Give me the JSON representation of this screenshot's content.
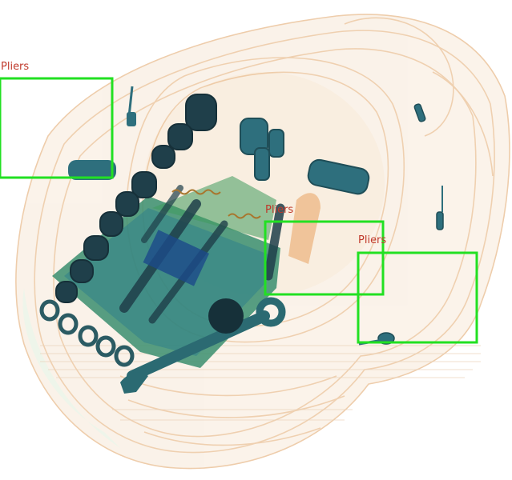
{
  "image": {
    "type": "x-ray baggage scan",
    "palette": {
      "organic": "#e8b98a",
      "organic_light": "#f3dcc2",
      "mixed": "#3f8a5a",
      "metal_dark": "#1f3f4a",
      "metal_teal": "#2e6f7d",
      "background": "#ffffff"
    }
  },
  "detections": [
    {
      "label": "Pliers",
      "box_color": "#22e022",
      "label_color": "#c0392b"
    },
    {
      "label": "Pliers",
      "box_color": "#22e022",
      "label_color": "#c0392b"
    },
    {
      "label": "Pliers",
      "box_color": "#22e022",
      "label_color": "#c0392b"
    }
  ]
}
